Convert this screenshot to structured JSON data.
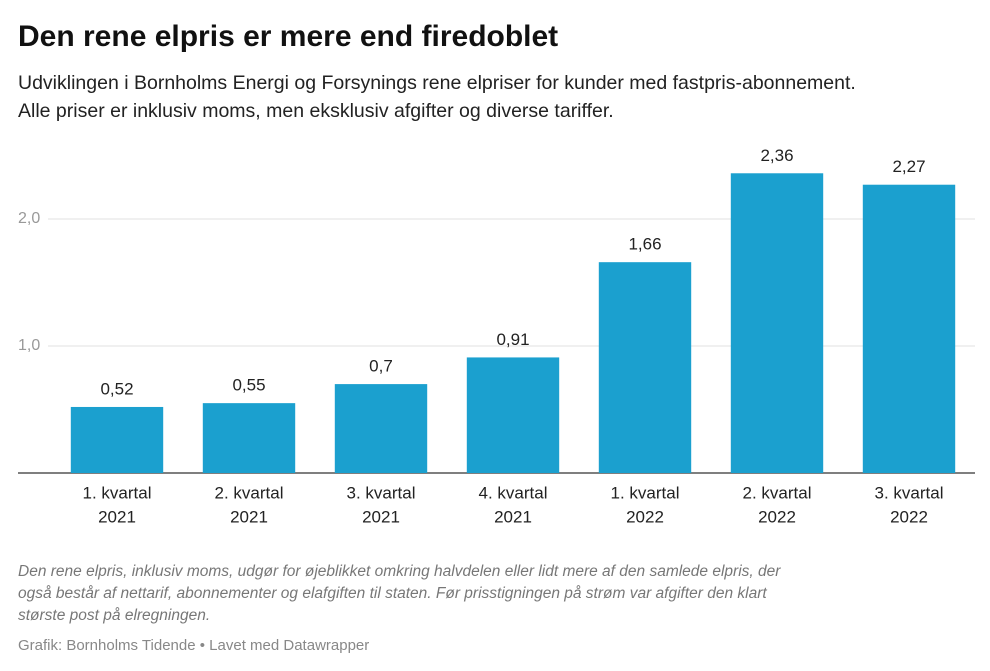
{
  "chart_data": {
    "type": "bar",
    "title": "Den rene elpris er mere end firedoblet",
    "subtitle": [
      "Udviklingen i Bornholms Energi og Forsynings rene elpriser for kunder med fastpris-abonnement.",
      "Alle priser er inklusiv moms, men eksklusiv afgifter og diverse tariffer."
    ],
    "categories": [
      [
        "1. kvartal",
        "2021"
      ],
      [
        "2. kvartal",
        "2021"
      ],
      [
        "3. kvartal",
        "2021"
      ],
      [
        "4. kvartal",
        "2021"
      ],
      [
        "1. kvartal",
        "2022"
      ],
      [
        "2. kvartal",
        "2022"
      ],
      [
        "3. kvartal",
        "2022"
      ]
    ],
    "values": [
      0.52,
      0.55,
      0.7,
      0.91,
      1.66,
      2.36,
      2.27
    ],
    "value_labels": [
      "0,52",
      "0,55",
      "0,7",
      "0,91",
      "1,66",
      "2,36",
      "2,27"
    ],
    "color": "#1ba0cf",
    "ylim": [
      0,
      2.5
    ],
    "yticks": [
      {
        "value": 1,
        "label": "1,0"
      },
      {
        "value": 2,
        "label": "2,0"
      }
    ],
    "grid": true,
    "notes": [
      "Den rene elpris, inklusiv moms, udgør for øjeblikket omkring halvdelen eller lidt mere af den samlede elpris, der",
      "også består af nettarif, abonnementer og elafgiften til staten. Før prisstigningen på strøm var afgifter den klart",
      "største post på elregningen."
    ],
    "credit": "Grafik: Bornholms Tidende • Lavet med Datawrapper"
  }
}
